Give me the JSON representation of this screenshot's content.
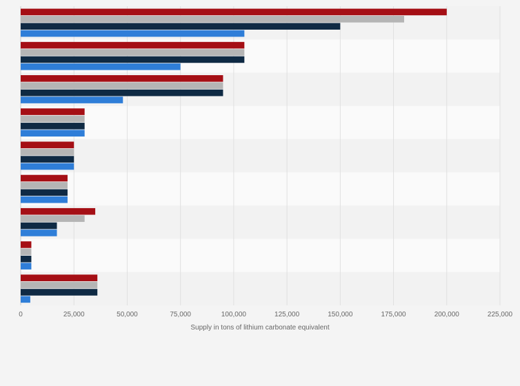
{
  "chart_data": {
    "type": "bar",
    "orientation": "horizontal",
    "title": "",
    "xlabel": "Supply in tons of lithium carbonate equivalent",
    "ylabel": "",
    "xlim": [
      0,
      225000
    ],
    "x_ticks": [
      0,
      25000,
      50000,
      75000,
      100000,
      125000,
      150000,
      175000,
      200000,
      225000
    ],
    "x_tick_labels": [
      "0",
      "25,000",
      "50,000",
      "75,000",
      "100,000",
      "125,000",
      "150,000",
      "175,000",
      "200,000",
      "225,000"
    ],
    "grid": true,
    "legend": "none",
    "group_count": 9,
    "series": [
      {
        "color": "#a50f15",
        "values": [
          200000,
          105000,
          95000,
          30000,
          25000,
          22000,
          35000,
          5000,
          36000
        ]
      },
      {
        "color": "#b5b5b5",
        "values": [
          180000,
          105000,
          95000,
          30000,
          25000,
          22000,
          30000,
          5000,
          36000
        ]
      },
      {
        "color": "#0f2a44",
        "values": [
          150000,
          105000,
          95000,
          30000,
          25000,
          22000,
          17000,
          5000,
          36000
        ]
      },
      {
        "color": "#2f7ed8",
        "values": [
          105000,
          75000,
          48000,
          30000,
          25000,
          22000,
          17000,
          5000,
          4500
        ]
      }
    ]
  }
}
